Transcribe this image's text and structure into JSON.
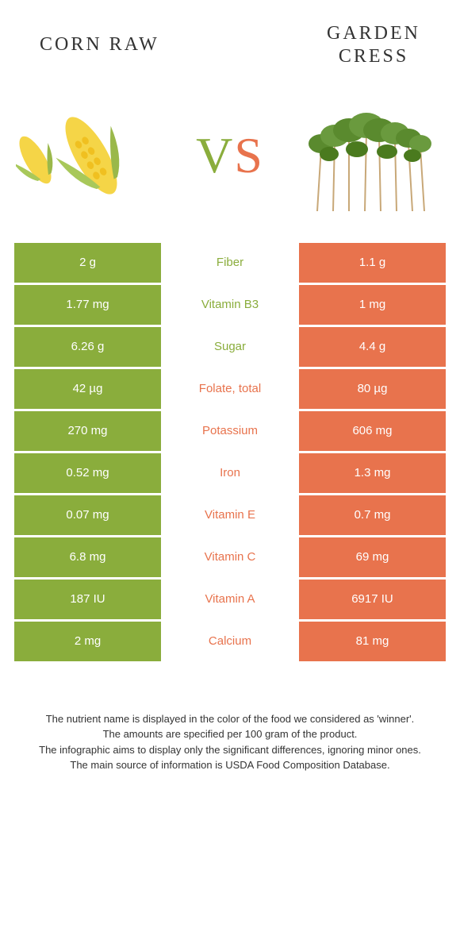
{
  "header": {
    "left_title": "CORN RAW",
    "right_title": "GARDEN\nCRESS"
  },
  "vs": {
    "v": "V",
    "s": "S"
  },
  "colors": {
    "left": "#8aad3c",
    "right": "#e8734d",
    "background": "#ffffff",
    "text_dark": "#333333"
  },
  "table": {
    "rows": [
      {
        "left": "2 g",
        "label": "Fiber",
        "right": "1.1 g",
        "winner": "left"
      },
      {
        "left": "1.77 mg",
        "label": "Vitamin B3",
        "right": "1 mg",
        "winner": "left"
      },
      {
        "left": "6.26 g",
        "label": "Sugar",
        "right": "4.4 g",
        "winner": "left"
      },
      {
        "left": "42 µg",
        "label": "Folate, total",
        "right": "80 µg",
        "winner": "right"
      },
      {
        "left": "270 mg",
        "label": "Potassium",
        "right": "606 mg",
        "winner": "right"
      },
      {
        "left": "0.52 mg",
        "label": "Iron",
        "right": "1.3 mg",
        "winner": "right"
      },
      {
        "left": "0.07 mg",
        "label": "Vitamin E",
        "right": "0.7 mg",
        "winner": "right"
      },
      {
        "left": "6.8 mg",
        "label": "Vitamin C",
        "right": "69 mg",
        "winner": "right"
      },
      {
        "left": "187 IU",
        "label": "Vitamin A",
        "right": "6917 IU",
        "winner": "right"
      },
      {
        "left": "2 mg",
        "label": "Calcium",
        "right": "81 mg",
        "winner": "right"
      }
    ]
  },
  "footer": {
    "line1": "The nutrient name is displayed in the color of the food we considered as 'winner'.",
    "line2": "The amounts are specified per 100 gram of the product.",
    "line3": "The infographic aims to display only the significant differences, ignoring minor ones.",
    "line4": "The main source of information is USDA Food Composition Database."
  },
  "images": {
    "left_alt": "corn-raw-illustration",
    "right_alt": "garden-cress-illustration"
  }
}
